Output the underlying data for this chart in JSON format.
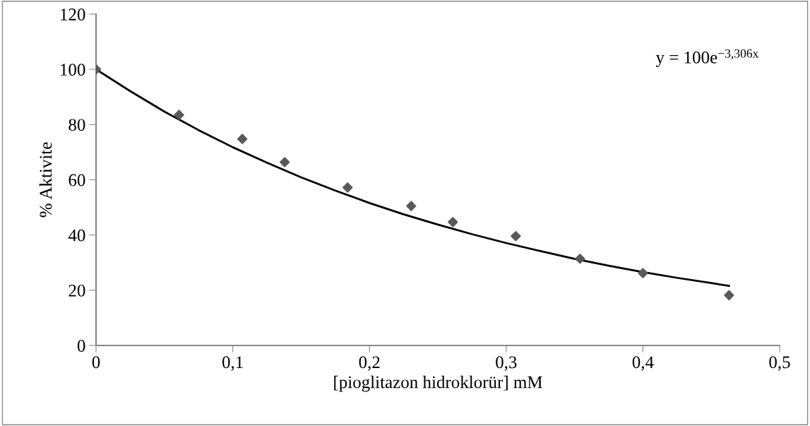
{
  "chart_data": {
    "type": "scatter",
    "xlabel": "[pioglitazon hidroklorür] mM",
    "ylabel": "% Aktivite",
    "annotations": [
      "y = 100e$^{−3,306x}$"
    ],
    "x": [
      0,
      0.0607,
      0.107,
      0.138,
      0.184,
      0.2305,
      0.261,
      0.307,
      0.354,
      0.4,
      0.463
    ],
    "series": [
      {
        "color": "#595959",
        "values": [
          100,
          83.5,
          74.8,
          66.4,
          57.2,
          50.5,
          44.7,
          39.6,
          31.4,
          26.2,
          18.2
        ],
        "marker": "diamond"
      },
      {
        "type": "line",
        "color": "#000000",
        "x": [
          0,
          0.025,
          0.05,
          0.075,
          0.1,
          0.125,
          0.15,
          0.175,
          0.2,
          0.225,
          0.25,
          0.275,
          0.3,
          0.325,
          0.35,
          0.375,
          0.4,
          0.425,
          0.45,
          0.463
        ],
        "values": [
          100,
          92.1,
          84.7,
          78.0,
          71.8,
          66.2,
          60.9,
          56.1,
          51.6,
          47.5,
          43.8,
          40.3,
          37.1,
          34.2,
          31.4,
          28.9,
          26.6,
          24.5,
          22.6,
          21.6
        ],
        "marker": "none"
      }
    ],
    "xlim": [
      0,
      0.5
    ],
    "ylim": [
      0,
      120
    ],
    "xticks": [
      0,
      {
        "value": 0.1,
        "label": "0,1"
      },
      {
        "value": 0.2,
        "label": "0,2"
      },
      {
        "value": 0.3,
        "label": "0,3"
      },
      {
        "value": 0.4,
        "label": "0,4"
      },
      {
        "value": 0.5,
        "label": "0,5"
      }
    ],
    "yticks": [
      0,
      20,
      40,
      60,
      80,
      100,
      120
    ]
  }
}
